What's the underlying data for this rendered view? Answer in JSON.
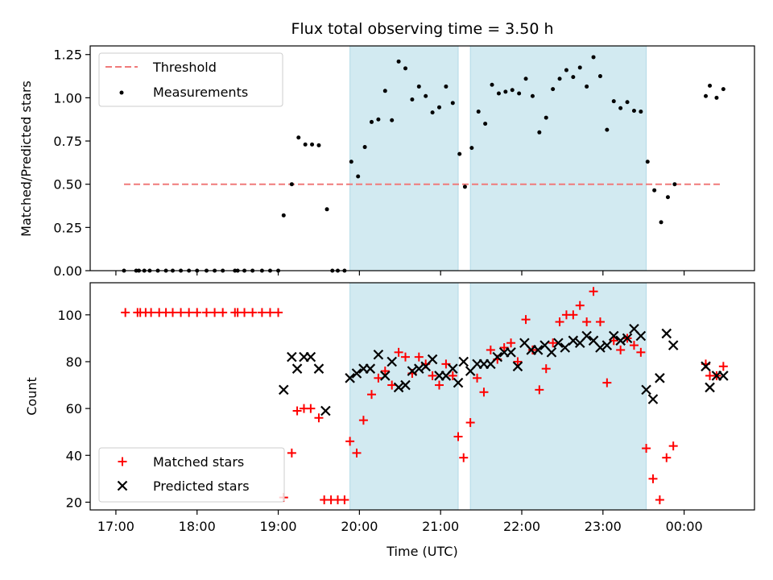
{
  "figure": {
    "title": "Flux total observing time = 3.50 h",
    "xlabel": "Time (UTC)"
  },
  "colors": {
    "threshold": "#f07a7a",
    "measurements": "#000000",
    "matched": "#ff0000",
    "predicted": "#000000",
    "shade": "#add8e6"
  },
  "chart_data": [
    {
      "type": "scatter",
      "ylabel": "Matched/Predicted stars",
      "xlim": [
        "16:41",
        "00:52"
      ],
      "ylim": [
        0,
        1.3
      ],
      "yticks": [
        0.0,
        0.25,
        0.5,
        0.75,
        1.0,
        1.25
      ],
      "ytick_labels": [
        "0.00",
        "0.25",
        "0.50",
        "0.75",
        "1.00",
        "1.25"
      ],
      "shaded_intervals": [
        [
          "19:53",
          "21:13"
        ],
        [
          "21:22",
          "23:32"
        ]
      ],
      "threshold": {
        "name": "Threshold",
        "value": 0.5,
        "x": [
          "17:06",
          "00:28"
        ]
      },
      "legend_position": "upper left",
      "series": [
        {
          "name": "Measurements",
          "points": [
            [
              "17:06",
              0.0
            ],
            [
              "17:15",
              0.0
            ],
            [
              "17:17",
              0.0
            ],
            [
              "17:21",
              0.0
            ],
            [
              "17:25",
              0.0
            ],
            [
              "17:31",
              0.0
            ],
            [
              "17:37",
              0.0
            ],
            [
              "17:42",
              0.0
            ],
            [
              "17:48",
              0.0
            ],
            [
              "17:54",
              0.0
            ],
            [
              "18:00",
              0.0
            ],
            [
              "18:07",
              0.0
            ],
            [
              "18:13",
              0.0
            ],
            [
              "18:19",
              0.0
            ],
            [
              "18:28",
              0.0
            ],
            [
              "18:30",
              0.0
            ],
            [
              "18:35",
              0.0
            ],
            [
              "18:41",
              0.0
            ],
            [
              "18:48",
              0.0
            ],
            [
              "18:54",
              0.0
            ],
            [
              "19:00",
              0.0
            ],
            [
              "19:04",
              0.32
            ],
            [
              "19:10",
              0.5
            ],
            [
              "19:15",
              0.77
            ],
            [
              "19:20",
              0.73
            ],
            [
              "19:25",
              0.73
            ],
            [
              "19:30",
              0.725
            ],
            [
              "19:36",
              0.355
            ],
            [
              "19:40",
              0.0
            ],
            [
              "19:44",
              0.0
            ],
            [
              "19:49",
              0.0
            ],
            [
              "19:54",
              0.63
            ],
            [
              "19:59",
              0.545
            ],
            [
              "20:04",
              0.715
            ],
            [
              "20:09",
              0.86
            ],
            [
              "20:14",
              0.875
            ],
            [
              "20:19",
              1.04
            ],
            [
              "20:24",
              0.87
            ],
            [
              "20:29",
              1.21
            ],
            [
              "20:34",
              1.17
            ],
            [
              "20:39",
              0.99
            ],
            [
              "20:44",
              1.065
            ],
            [
              "20:49",
              1.01
            ],
            [
              "20:54",
              0.915
            ],
            [
              "20:59",
              0.945
            ],
            [
              "21:04",
              1.065
            ],
            [
              "21:09",
              0.97
            ],
            [
              "21:14",
              0.675
            ],
            [
              "21:18",
              0.485
            ],
            [
              "21:23",
              0.71
            ],
            [
              "21:28",
              0.92
            ],
            [
              "21:33",
              0.85
            ],
            [
              "21:38",
              1.075
            ],
            [
              "21:43",
              1.025
            ],
            [
              "21:48",
              1.035
            ],
            [
              "21:53",
              1.045
            ],
            [
              "21:58",
              1.025
            ],
            [
              "22:03",
              1.11
            ],
            [
              "22:08",
              1.01
            ],
            [
              "22:13",
              0.8
            ],
            [
              "22:18",
              0.885
            ],
            [
              "22:23",
              1.05
            ],
            [
              "22:28",
              1.11
            ],
            [
              "22:33",
              1.16
            ],
            [
              "22:38",
              1.12
            ],
            [
              "22:43",
              1.175
            ],
            [
              "22:48",
              1.065
            ],
            [
              "22:53",
              1.235
            ],
            [
              "22:58",
              1.125
            ],
            [
              "23:03",
              0.815
            ],
            [
              "23:08",
              0.98
            ],
            [
              "23:13",
              0.94
            ],
            [
              "23:18",
              0.975
            ],
            [
              "23:23",
              0.925
            ],
            [
              "23:28",
              0.92
            ],
            [
              "23:33",
              0.63
            ],
            [
              "23:38",
              0.465
            ],
            [
              "23:43",
              0.28
            ],
            [
              "23:48",
              0.425
            ],
            [
              "23:53",
              0.5
            ],
            [
              "00:16",
              1.01
            ],
            [
              "00:19",
              1.07
            ],
            [
              "00:24",
              1.0
            ],
            [
              "00:29",
              1.05
            ]
          ]
        }
      ]
    },
    {
      "type": "scatter",
      "ylabel": "Count",
      "xlabel": "Time (UTC)",
      "xlim": [
        "16:41",
        "00:52"
      ],
      "ylim": [
        16.7,
        113.7
      ],
      "yticks": [
        20,
        40,
        60,
        80,
        100
      ],
      "ytick_labels": [
        "20",
        "40",
        "60",
        "80",
        "100"
      ],
      "xticks": [
        "17:00",
        "18:00",
        "19:00",
        "20:00",
        "21:00",
        "22:00",
        "23:00",
        "00:00"
      ],
      "shaded_intervals": [
        [
          "19:53",
          "21:13"
        ],
        [
          "21:22",
          "23:32"
        ]
      ],
      "legend_position": "lower left",
      "series": [
        {
          "name": "Matched stars",
          "marker": "plus",
          "points": [
            [
              "17:07",
              101
            ],
            [
              "17:16",
              101
            ],
            [
              "17:18",
              101
            ],
            [
              "17:22",
              101
            ],
            [
              "17:26",
              101
            ],
            [
              "17:32",
              101
            ],
            [
              "17:37",
              101
            ],
            [
              "17:42",
              101
            ],
            [
              "17:48",
              101
            ],
            [
              "17:54",
              101
            ],
            [
              "18:00",
              101
            ],
            [
              "18:07",
              101
            ],
            [
              "18:13",
              101
            ],
            [
              "18:19",
              101
            ],
            [
              "18:28",
              101
            ],
            [
              "18:30",
              101
            ],
            [
              "18:35",
              101
            ],
            [
              "18:41",
              101
            ],
            [
              "18:48",
              101
            ],
            [
              "18:54",
              101
            ],
            [
              "19:00",
              101
            ],
            [
              "19:04",
              22
            ],
            [
              "19:10",
              41
            ],
            [
              "19:14",
              59
            ],
            [
              "19:19",
              60
            ],
            [
              "19:24",
              60
            ],
            [
              "19:30",
              56
            ],
            [
              "19:34",
              21
            ],
            [
              "19:39",
              21
            ],
            [
              "19:44",
              21
            ],
            [
              "19:49",
              21
            ],
            [
              "19:53",
              46
            ],
            [
              "19:58",
              41
            ],
            [
              "20:03",
              55
            ],
            [
              "20:09",
              66
            ],
            [
              "20:14",
              73
            ],
            [
              "20:19",
              76
            ],
            [
              "20:24",
              70
            ],
            [
              "20:29",
              84
            ],
            [
              "20:34",
              82
            ],
            [
              "20:39",
              75
            ],
            [
              "20:44",
              82
            ],
            [
              "20:49",
              79
            ],
            [
              "20:54",
              74
            ],
            [
              "20:59",
              70
            ],
            [
              "21:04",
              79
            ],
            [
              "21:09",
              74
            ],
            [
              "21:13",
              48
            ],
            [
              "21:17",
              39
            ],
            [
              "21:22",
              54
            ],
            [
              "21:27",
              73
            ],
            [
              "21:32",
              67
            ],
            [
              "21:37",
              85
            ],
            [
              "21:42",
              81
            ],
            [
              "21:47",
              86
            ],
            [
              "21:52",
              88
            ],
            [
              "21:57",
              80
            ],
            [
              "22:03",
              98
            ],
            [
              "22:08",
              85
            ],
            [
              "22:13",
              68
            ],
            [
              "22:18",
              77
            ],
            [
              "22:23",
              88
            ],
            [
              "22:28",
              97
            ],
            [
              "22:33",
              100
            ],
            [
              "22:38",
              100
            ],
            [
              "22:43",
              104
            ],
            [
              "22:48",
              97
            ],
            [
              "22:53",
              110
            ],
            [
              "22:58",
              97
            ],
            [
              "23:03",
              71
            ],
            [
              "23:08",
              89
            ],
            [
              "23:13",
              85
            ],
            [
              "23:18",
              90
            ],
            [
              "23:23",
              87
            ],
            [
              "23:28",
              84
            ],
            [
              "23:32",
              43
            ],
            [
              "23:37",
              30
            ],
            [
              "23:42",
              21
            ],
            [
              "23:47",
              39
            ],
            [
              "23:52",
              44
            ],
            [
              "00:16",
              79
            ],
            [
              "00:19",
              74
            ],
            [
              "00:24",
              74
            ],
            [
              "00:29",
              78
            ]
          ]
        },
        {
          "name": "Predicted stars",
          "marker": "x",
          "points": [
            [
              "19:04",
              68
            ],
            [
              "19:10",
              82
            ],
            [
              "19:14",
              77
            ],
            [
              "19:19",
              82
            ],
            [
              "19:24",
              82
            ],
            [
              "19:30",
              77
            ],
            [
              "19:35",
              59
            ],
            [
              "19:53",
              73
            ],
            [
              "19:58",
              75
            ],
            [
              "20:03",
              77
            ],
            [
              "20:08",
              77
            ],
            [
              "20:14",
              83
            ],
            [
              "20:19",
              74
            ],
            [
              "20:24",
              80
            ],
            [
              "20:29",
              69
            ],
            [
              "20:34",
              70
            ],
            [
              "20:39",
              76
            ],
            [
              "20:44",
              77
            ],
            [
              "20:49",
              78
            ],
            [
              "20:54",
              81
            ],
            [
              "20:59",
              74
            ],
            [
              "21:04",
              74
            ],
            [
              "21:09",
              77
            ],
            [
              "21:13",
              71
            ],
            [
              "21:17",
              80
            ],
            [
              "21:22",
              76
            ],
            [
              "21:27",
              79
            ],
            [
              "21:32",
              79
            ],
            [
              "21:37",
              79
            ],
            [
              "21:42",
              82
            ],
            [
              "21:47",
              84
            ],
            [
              "21:52",
              84
            ],
            [
              "21:57",
              78
            ],
            [
              "22:02",
              88
            ],
            [
              "22:07",
              85
            ],
            [
              "22:12",
              85
            ],
            [
              "22:17",
              87
            ],
            [
              "22:22",
              84
            ],
            [
              "22:27",
              88
            ],
            [
              "22:32",
              86
            ],
            [
              "22:38",
              89
            ],
            [
              "22:43",
              88
            ],
            [
              "22:48",
              91
            ],
            [
              "22:53",
              89
            ],
            [
              "22:58",
              86
            ],
            [
              "23:03",
              87
            ],
            [
              "23:08",
              91
            ],
            [
              "23:13",
              89
            ],
            [
              "23:18",
              90
            ],
            [
              "23:23",
              94
            ],
            [
              "23:28",
              91
            ],
            [
              "23:32",
              68
            ],
            [
              "23:37",
              64
            ],
            [
              "23:42",
              73
            ],
            [
              "23:47",
              92
            ],
            [
              "23:52",
              87
            ],
            [
              "00:16",
              78
            ],
            [
              "00:19",
              69
            ],
            [
              "00:24",
              74
            ],
            [
              "00:29",
              74
            ]
          ]
        }
      ]
    }
  ]
}
